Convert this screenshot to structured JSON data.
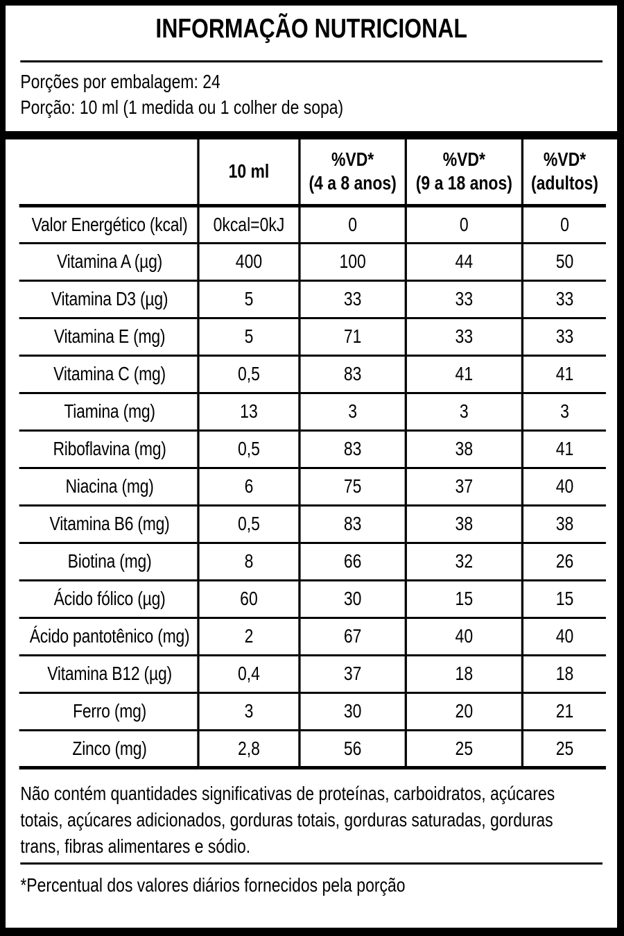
{
  "title": "INFORMAÇÃO NUTRICIONAL",
  "serving_info": {
    "servings_per_package": "Porções por embalagem: 24",
    "serving_size": "Porção: 10 ml (1 medida ou 1 colher de sopa)"
  },
  "table": {
    "columns": [
      {
        "line1": "",
        "line2": ""
      },
      {
        "line1": "10 ml",
        "line2": ""
      },
      {
        "line1": "%VD*",
        "line2": "(4 a 8 anos)"
      },
      {
        "line1": "%VD*",
        "line2": "(9 a 18 anos)"
      },
      {
        "line1": "%VD*",
        "line2": "(adultos)"
      }
    ],
    "rows": [
      {
        "label": "Valor Energético (kcal)",
        "amount": "0kcal=0kJ",
        "vd_4_8": "0",
        "vd_9_18": "0",
        "vd_adults": "0"
      },
      {
        "label": "Vitamina A (µg)",
        "amount": "400",
        "vd_4_8": "100",
        "vd_9_18": "44",
        "vd_adults": "50"
      },
      {
        "label": "Vitamina D3 (µg)",
        "amount": "5",
        "vd_4_8": "33",
        "vd_9_18": "33",
        "vd_adults": "33"
      },
      {
        "label": "Vitamina E (mg)",
        "amount": "5",
        "vd_4_8": "71",
        "vd_9_18": "33",
        "vd_adults": "33"
      },
      {
        "label": "Vitamina C (mg)",
        "amount": "0,5",
        "vd_4_8": "83",
        "vd_9_18": "41",
        "vd_adults": "41"
      },
      {
        "label": "Tiamina (mg)",
        "amount": "13",
        "vd_4_8": "3",
        "vd_9_18": "3",
        "vd_adults": "3"
      },
      {
        "label": "Riboflavina (mg)",
        "amount": "0,5",
        "vd_4_8": "83",
        "vd_9_18": "38",
        "vd_adults": "41"
      },
      {
        "label": "Niacina (mg)",
        "amount": "6",
        "vd_4_8": "75",
        "vd_9_18": "37",
        "vd_adults": "40"
      },
      {
        "label": "Vitamina B6 (mg)",
        "amount": "0,5",
        "vd_4_8": "83",
        "vd_9_18": "38",
        "vd_adults": "38"
      },
      {
        "label": "Biotina (mg)",
        "amount": "8",
        "vd_4_8": "66",
        "vd_9_18": "32",
        "vd_adults": "26"
      },
      {
        "label": "Ácido fólico (µg)",
        "amount": "60",
        "vd_4_8": "30",
        "vd_9_18": "15",
        "vd_adults": "15"
      },
      {
        "label": "Ácido pantotênico (mg)",
        "amount": "2",
        "vd_4_8": "67",
        "vd_9_18": "40",
        "vd_adults": "40"
      },
      {
        "label": "Vitamina B12 (µg)",
        "amount": "0,4",
        "vd_4_8": "37",
        "vd_9_18": "18",
        "vd_adults": "18"
      },
      {
        "label": "Ferro (mg)",
        "amount": "3",
        "vd_4_8": "30",
        "vd_9_18": "20",
        "vd_adults": "21"
      },
      {
        "label": "Zinco (mg)",
        "amount": "2,8",
        "vd_4_8": "56",
        "vd_9_18": "25",
        "vd_adults": "25"
      }
    ]
  },
  "footnotes": {
    "no_significant_lines": [
      "Não contém quantidades significativas de proteínas, carboidratos, açúcares",
      "totais, açúcares adicionados, gorduras totais, gorduras saturadas, gorduras",
      "trans, fibras alimentares e sódio."
    ],
    "no_significant_full_text": "Não contém quantidades significativas de proteínas, carboidratos, açúcares totais, açúcares adicionados, gorduras totais, gorduras saturadas, gorduras trans, fibras alimentares e sódio.",
    "daily_value_note": "*Percentual dos valores diários fornecidos pela porção"
  },
  "colors": {
    "ink": "#000000",
    "paper": "#ffffff"
  }
}
